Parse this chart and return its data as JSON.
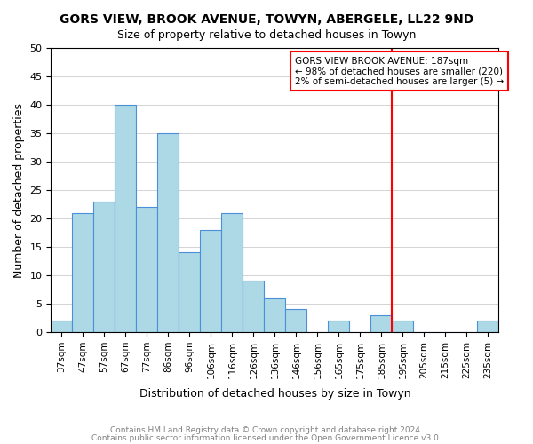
{
  "title": "GORS VIEW, BROOK AVENUE, TOWYN, ABERGELE, LL22 9ND",
  "subtitle": "Size of property relative to detached houses in Towyn",
  "xlabel": "Distribution of detached houses by size in Towyn",
  "ylabel": "Number of detached properties",
  "footer_line1": "Contains HM Land Registry data © Crown copyright and database right 2024.",
  "footer_line2": "Contains public sector information licensed under the Open Government Licence v3.0.",
  "bin_labels": [
    "37sqm",
    "47sqm",
    "57sqm",
    "67sqm",
    "77sqm",
    "86sqm",
    "96sqm",
    "106sqm",
    "116sqm",
    "126sqm",
    "136sqm",
    "146sqm",
    "156sqm",
    "165sqm",
    "175sqm",
    "185sqm",
    "195sqm",
    "205sqm",
    "215sqm",
    "225sqm",
    "235sqm"
  ],
  "bar_heights": [
    2,
    21,
    23,
    40,
    22,
    35,
    14,
    18,
    21,
    9,
    6,
    4,
    0,
    2,
    0,
    3,
    2,
    0,
    0,
    0,
    2
  ],
  "bar_color": "#add8e6",
  "bar_edge_color": "#4a90d9",
  "property_line_color": "red",
  "annotation_title": "GORS VIEW BROOK AVENUE: 187sqm",
  "annotation_line1": "← 98% of detached houses are smaller (220)",
  "annotation_line2": "2% of semi-detached houses are larger (5) →",
  "annotation_box_color": "white",
  "annotation_box_edge_color": "red",
  "ylim": [
    0,
    50
  ],
  "yticks": [
    0,
    5,
    10,
    15,
    20,
    25,
    30,
    35,
    40,
    45,
    50
  ]
}
